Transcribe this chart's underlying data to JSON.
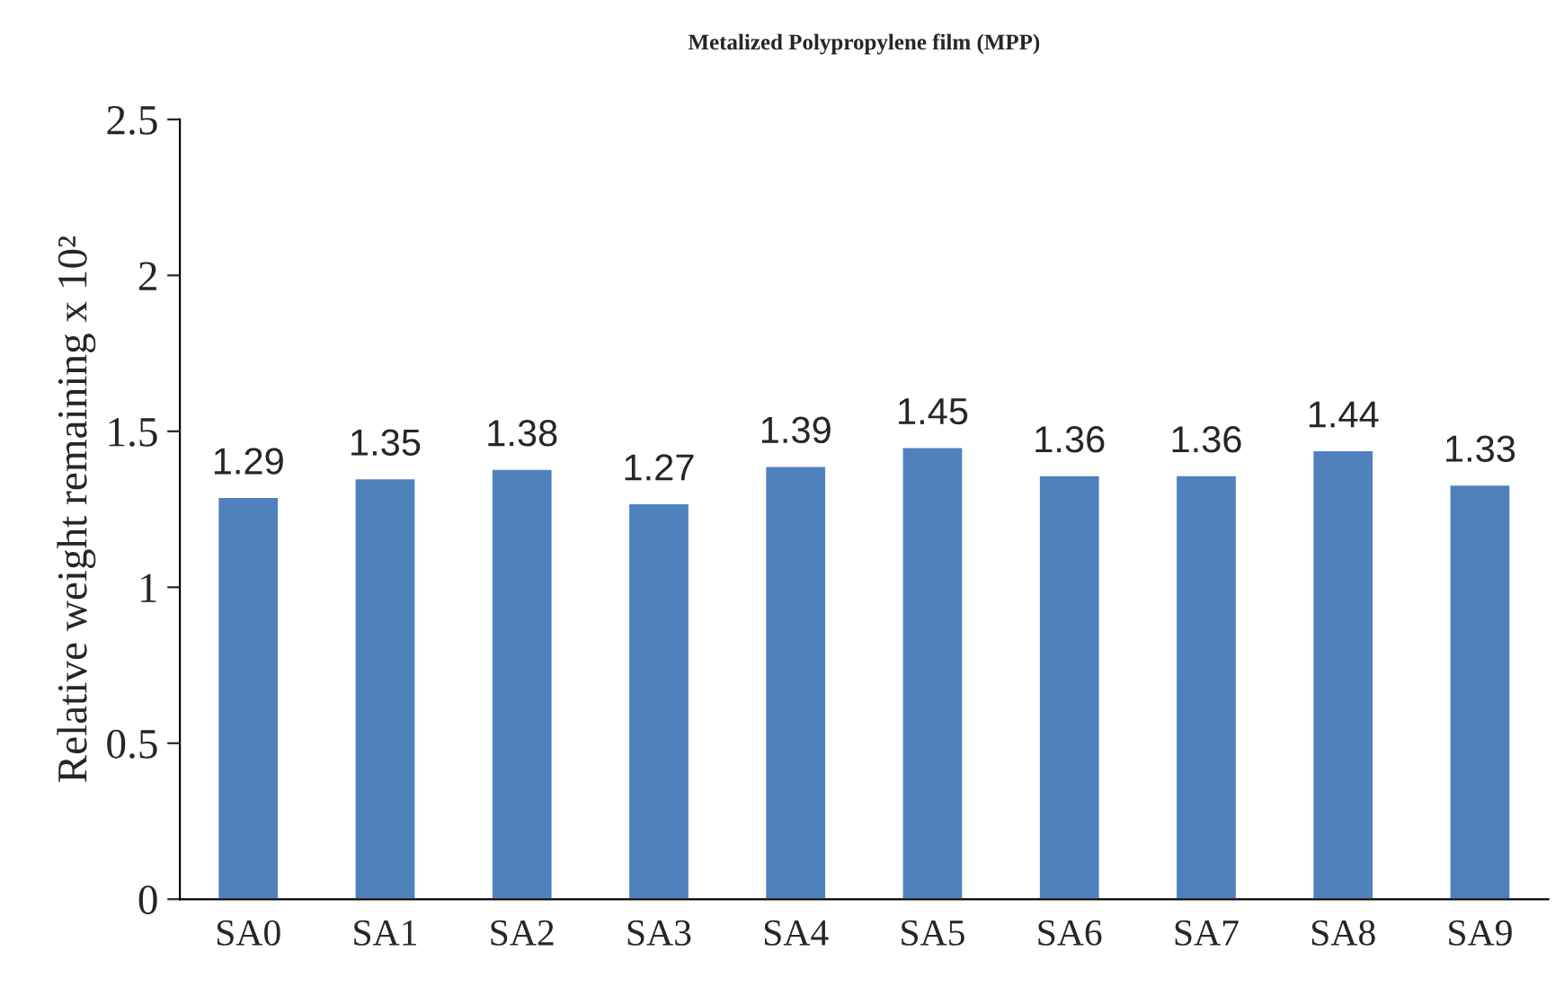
{
  "chart_data": {
    "type": "bar",
    "title": "Metalized Polypropylene film (MPP)",
    "ylabel": "Relative weight remaining x 10²",
    "categories": [
      "SA0",
      "SA1",
      "SA2",
      "SA3",
      "SA4",
      "SA5",
      "SA6",
      "SA7",
      "SA8",
      "SA9"
    ],
    "values": [
      1.29,
      1.35,
      1.38,
      1.27,
      1.39,
      1.45,
      1.36,
      1.36,
      1.44,
      1.33
    ],
    "color": "#4f81bd",
    "ylim": [
      0,
      2.5
    ],
    "yticks": [
      0,
      {
        "value": 0.5,
        "label": "0.5"
      },
      1,
      {
        "value": 1.5,
        "label": "1.5"
      },
      2,
      {
        "value": 2.5,
        "label": "2.5"
      }
    ],
    "data_labels": true,
    "grid": false,
    "legend": false
  }
}
